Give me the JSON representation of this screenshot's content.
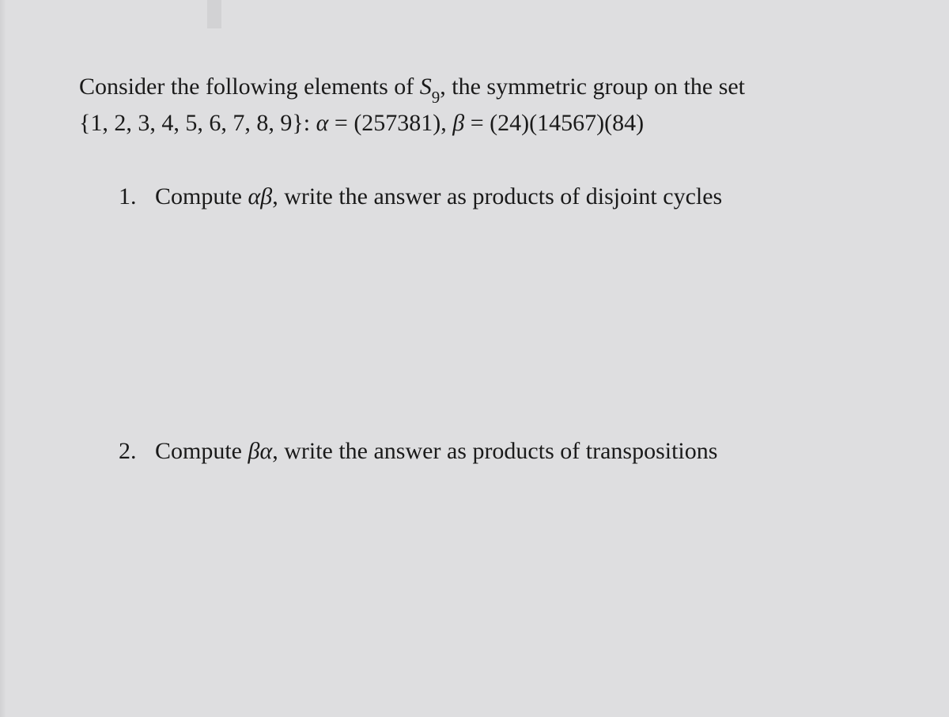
{
  "colors": {
    "background": "#dedee0",
    "text": "#1a1a1a"
  },
  "typography": {
    "font_family": "Times New Roman",
    "body_fontsize_pt": 22,
    "subscript_fontsize_pt": 16
  },
  "intro": {
    "line1_prefix": "Consider the following elements of ",
    "group_symbol": "S",
    "group_subscript": "9",
    "line1_suffix": ", the symmetric group on the set",
    "set_text": "{1, 2, 3, 4, 5, 6, 7, 8, 9}: ",
    "alpha": "α",
    "eq": " = ",
    "alpha_value": "(257381)",
    "comma": ", ",
    "beta": "β",
    "beta_value": "(24)(14567)(84)"
  },
  "problems": [
    {
      "number": "1.",
      "prefix": "Compute ",
      "expr": "αβ",
      "suffix": ", write the answer as products of disjoint cycles"
    },
    {
      "number": "2.",
      "prefix": "Compute ",
      "expr": "βα",
      "suffix": ", write the answer as products of transpositions"
    }
  ]
}
